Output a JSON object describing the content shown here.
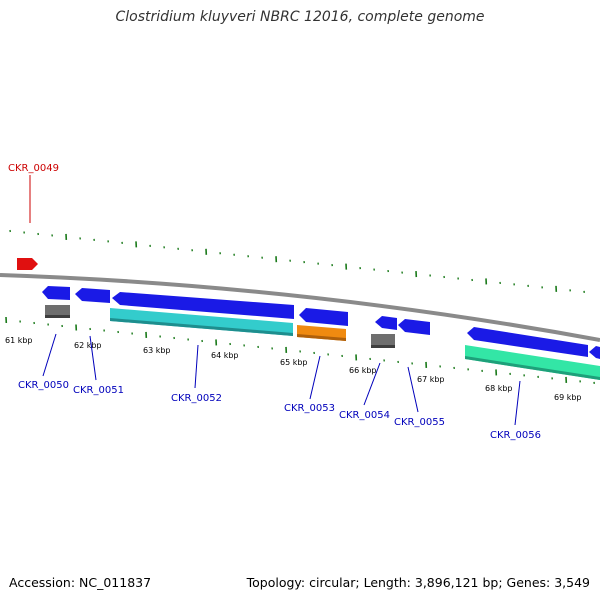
{
  "title": "Clostridium kluyveri NBRC 12016, complete genome",
  "accession": "Accession: NC_011837",
  "summary": "Topology: circular; Length: 3,896,121 bp; Genes: 3,549",
  "colors": {
    "backbone": "#808080",
    "tick": "#1a7a1a",
    "label_plus": "#cc0000",
    "label_minus": "#0000bb",
    "feature_red": "#e01010",
    "feature_blue": "#1a1ae6",
    "feature_gray": "#6e6e6e",
    "feature_cyan": "#33cccc",
    "feature_orange": "#f08a10",
    "feature_green": "#33e6a6"
  },
  "scale_labels": [
    "61 kbp",
    "62 kbp",
    "63 kbp",
    "64 kbp",
    "65 kbp",
    "66 kbp",
    "67 kbp",
    "68 kbp",
    "69 kbp"
  ],
  "gene_labels": [
    {
      "name": "CKR_0049",
      "strand": "+"
    },
    {
      "name": "CKR_0050",
      "strand": "-"
    },
    {
      "name": "CKR_0051",
      "strand": "-"
    },
    {
      "name": "CKR_0052",
      "strand": "-"
    },
    {
      "name": "CKR_0053",
      "strand": "-"
    },
    {
      "name": "CKR_0054",
      "strand": "-"
    },
    {
      "name": "CKR_0055",
      "strand": "-"
    },
    {
      "name": "CKR_0056",
      "strand": "-"
    }
  ]
}
